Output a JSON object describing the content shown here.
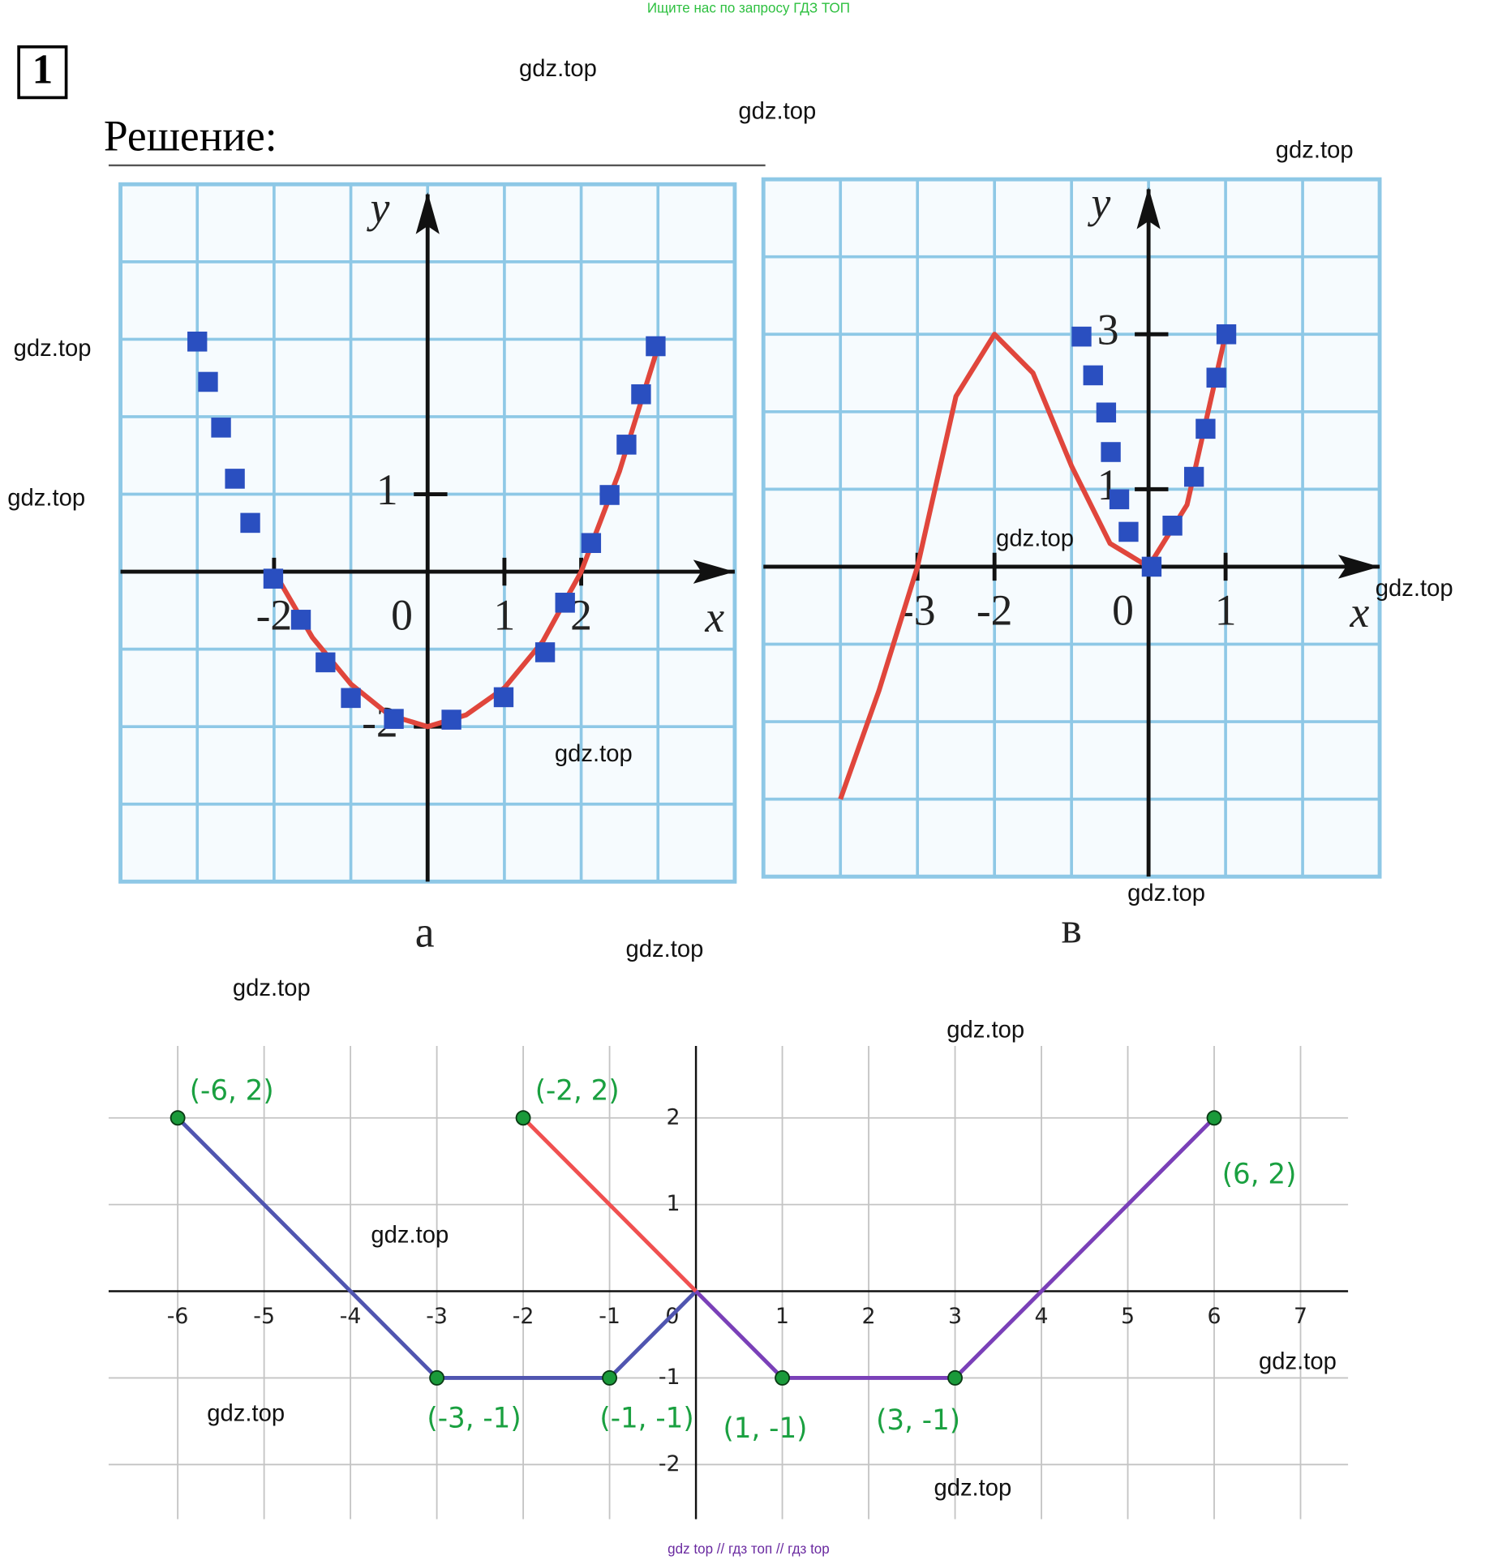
{
  "header": {
    "notice": "Ищите нас по запросу ГДЗ ТОП",
    "number": "1",
    "heading": "Решение:"
  },
  "watermarks": [
    "gdz.top",
    "gdz.top",
    "gdz.top",
    "gdz.top",
    "gdz.top",
    "gdz.top",
    "gdz.top",
    "gdz.top",
    "gdz.top",
    "gdz.top",
    "gdz.top",
    "gdz.top",
    "gdz.top",
    "gdz.top",
    "gdz.top",
    "gdz.top"
  ],
  "footer": "gdz top // гдз топ // гдз top",
  "chart_data": [
    {
      "type": "line",
      "label": "а",
      "x_label": "x",
      "y_label": "y",
      "xlim": [
        -4,
        4
      ],
      "ylim": [
        -4,
        5
      ],
      "xticks": [
        -2,
        0,
        1,
        2
      ],
      "yticks": [
        1,
        -2
      ],
      "series": [
        {
          "type": "line",
          "color": "#e0463c",
          "x": [
            -2,
            -1.5,
            -1,
            -0.5,
            0,
            0.5,
            1,
            1.5,
            2,
            2.5,
            3
          ],
          "values": [
            0,
            -0.85,
            -1.45,
            -1.85,
            -2,
            -1.85,
            -1.5,
            -0.9,
            0,
            1.3,
            2.9
          ]
        },
        {
          "type": "scatter",
          "color": "#2a4fc0",
          "x": [
            -3,
            -2.86,
            -2.69,
            -2.51,
            -2.31,
            -2.01,
            -1.65,
            -1.33,
            -1,
            -0.44,
            0.31,
            0.99,
            1.53,
            1.79,
            2.13,
            2.37,
            2.59,
            2.78,
            2.97
          ],
          "values": [
            2.97,
            2.45,
            1.86,
            1.2,
            0.63,
            -0.09,
            -0.62,
            -1.17,
            -1.63,
            -1.9,
            -1.91,
            -1.62,
            -1.04,
            -0.4,
            0.37,
            0.99,
            1.64,
            2.29,
            2.91
          ]
        }
      ]
    },
    {
      "type": "line",
      "label": "в",
      "x_label": "x",
      "y_label": "y",
      "xlim": [
        -5,
        3
      ],
      "ylim": [
        -4,
        5
      ],
      "xticks": [
        -3,
        -2,
        0,
        1
      ],
      "yticks": [
        3,
        1
      ],
      "series": [
        {
          "type": "line",
          "color": "#e0463c",
          "x": [
            -4,
            -3.5,
            -3,
            -2.5,
            -2,
            -1.5,
            -1,
            -0.5,
            0,
            0.5,
            1
          ],
          "values": [
            -3,
            -1.6,
            0,
            2.2,
            3,
            2.5,
            1.3,
            0.3,
            0,
            0.8,
            3
          ]
        },
        {
          "type": "scatter",
          "color": "#2a4fc0",
          "x": [
            -0.87,
            -0.72,
            -0.55,
            -0.49,
            -0.38,
            -0.26,
            0.04,
            0.31,
            0.59,
            0.74,
            0.88,
            1.01
          ],
          "values": [
            2.97,
            2.47,
            1.99,
            1.48,
            0.87,
            0.45,
            0,
            0.53,
            1.16,
            1.78,
            2.44,
            3
          ]
        }
      ]
    },
    {
      "type": "line",
      "xlim": [
        -6.8,
        7.55
      ],
      "ylim": [
        -2.63,
        2.83
      ],
      "xticks": [
        -6,
        -5,
        -4,
        -3,
        -2,
        -1,
        0,
        1,
        2,
        3,
        4,
        5,
        6,
        7
      ],
      "yticks": [
        2,
        1,
        -1,
        -2
      ],
      "series": [
        {
          "type": "line",
          "color": "#5055b0",
          "x": [
            -6,
            -3,
            -1,
            0
          ],
          "values": [
            2,
            -1,
            -1,
            0
          ]
        },
        {
          "type": "line",
          "color": "#f05050",
          "x": [
            -2,
            0
          ],
          "values": [
            2,
            0
          ]
        },
        {
          "type": "line",
          "color": "#7a40b8",
          "x": [
            0,
            1,
            3,
            6
          ],
          "values": [
            0,
            -1,
            -1,
            2
          ]
        }
      ],
      "points": {
        "color": "#1a9a3a",
        "x": [
          -6,
          -2,
          6,
          -3,
          -1,
          1,
          3
        ],
        "values": [
          2,
          2,
          2,
          -1,
          -1,
          -1,
          -1
        ],
        "labels": [
          "(-6, 2)",
          "(-2, 2)",
          "(6, 2)",
          "(-3, -1)",
          "(-1, -1)",
          "(1, -1)",
          "(3, -1)"
        ]
      }
    }
  ]
}
